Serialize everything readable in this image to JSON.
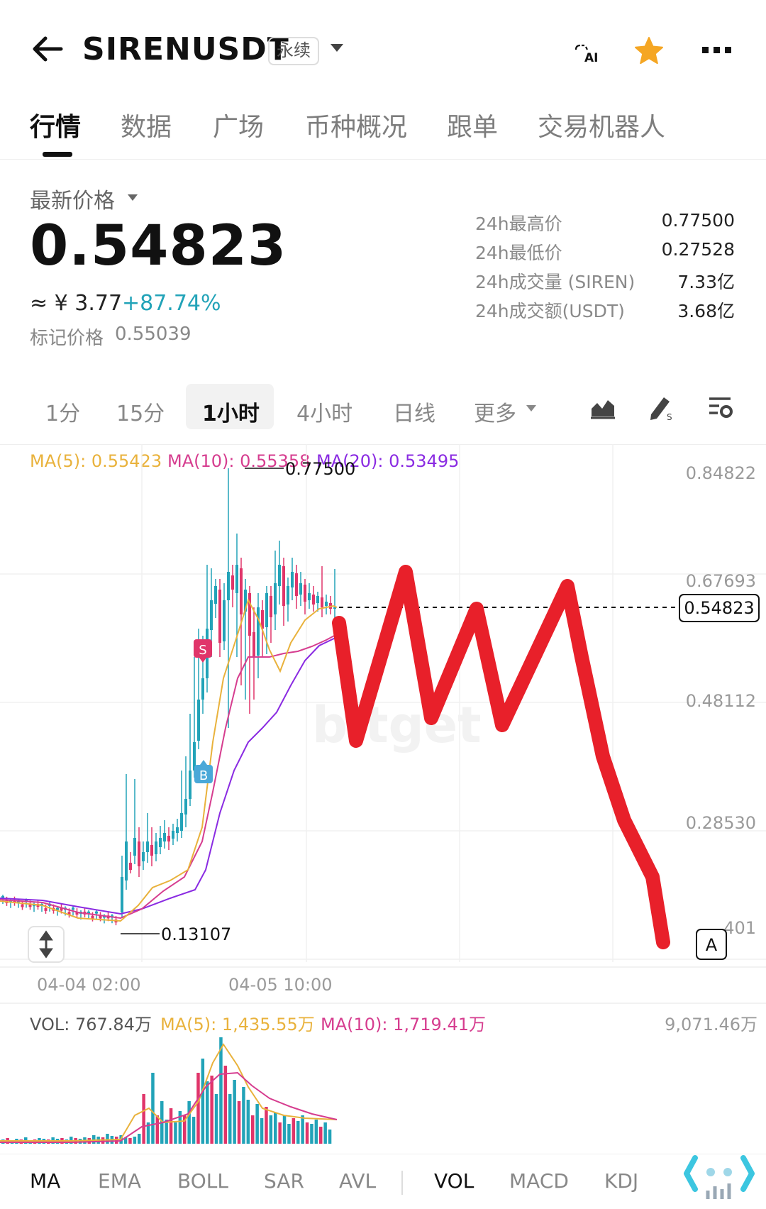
{
  "header": {
    "symbol": "SIRENUSDT",
    "contract_type": "永续",
    "ai_label": "AI"
  },
  "tabs": [
    "行情",
    "数据",
    "广场",
    "币种概况",
    "跟单",
    "交易机器人"
  ],
  "price": {
    "latest_label": "最新价格",
    "last": "0.54823",
    "cny": "≈ ¥ 3.77",
    "change": "+87.74%",
    "mark_label": "标记价格",
    "mark_value": "0.55039"
  },
  "stats": [
    {
      "label": "24h最高价",
      "value": "0.77500"
    },
    {
      "label": "24h最低价",
      "value": "0.27528"
    },
    {
      "label": "24h成交量 (SIREN)",
      "value": "7.33亿"
    },
    {
      "label": "24h成交额(USDT)",
      "value": "3.68亿"
    }
  ],
  "intervals": [
    "1分",
    "15分",
    "1小时",
    "4小时",
    "日线",
    "更多"
  ],
  "ma_labels": [
    "MA(5): 0.55423",
    "MA(10): 0.55358",
    "MA(20): 0.53495"
  ],
  "colors": {
    "up": "#22a3b8",
    "down": "#e0356a",
    "ma5": "#e9b23c",
    "ma10": "#d63d8f",
    "ma20": "#8a2be2",
    "drawing": "#e8202a"
  },
  "chart_data": {
    "type": "candlestick",
    "price_axis": [
      "0.84822",
      "0.67693",
      "0.48112",
      "0.28530",
      "401"
    ],
    "time_axis": [
      "04-04 02:00",
      "04-05 10:00"
    ],
    "current_price": "0.54823",
    "high_marker": "0.77500",
    "low_marker": "0.13107",
    "trade_markers": [
      "S",
      "B"
    ],
    "auto_scale_label": "A",
    "volume_labels": [
      "VOL: 767.84万",
      "MA(5): 1,435.55万",
      "MA(10): 1,719.41万"
    ],
    "volume_axis_max": "9,071.46万"
  },
  "indicators": [
    "MA",
    "EMA",
    "BOLL",
    "SAR",
    "AVL",
    "VOL",
    "MACD",
    "KDJ"
  ]
}
